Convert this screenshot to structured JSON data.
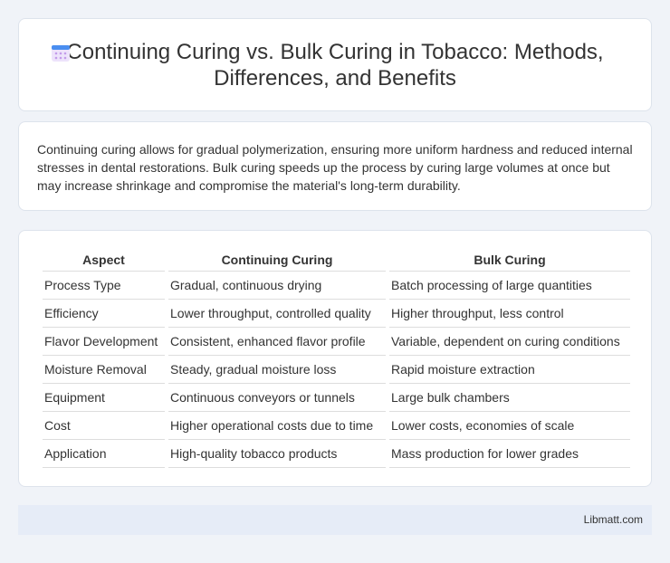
{
  "header": {
    "title": "Continuing Curing vs. Bulk Curing in Tobacco: Methods, Differences, and Benefits"
  },
  "summary": "Continuing curing allows for gradual polymerization, ensuring more uniform hardness and reduced internal stresses in dental restorations. Bulk curing speeds up the process by curing large volumes at once but may increase shrinkage and compromise the material's long-term durability.",
  "table": {
    "columns": [
      "Aspect",
      "Continuing Curing",
      "Bulk Curing"
    ],
    "rows": [
      [
        "Process Type",
        "Gradual, continuous drying",
        "Batch processing of large quantities"
      ],
      [
        "Efficiency",
        "Lower throughput, controlled quality",
        "Higher throughput, less control"
      ],
      [
        "Flavor Development",
        "Consistent, enhanced flavor profile",
        "Variable, dependent on curing conditions"
      ],
      [
        "Moisture Removal",
        "Steady, gradual moisture loss",
        "Rapid moisture extraction"
      ],
      [
        "Equipment",
        "Continuous conveyors or tunnels",
        "Large bulk chambers"
      ],
      [
        "Cost",
        "Higher operational costs due to time",
        "Lower costs, economies of scale"
      ],
      [
        "Application",
        "High-quality tobacco products",
        "Mass production for lower grades"
      ]
    ]
  },
  "footer": {
    "source": "Libmatt.com"
  }
}
